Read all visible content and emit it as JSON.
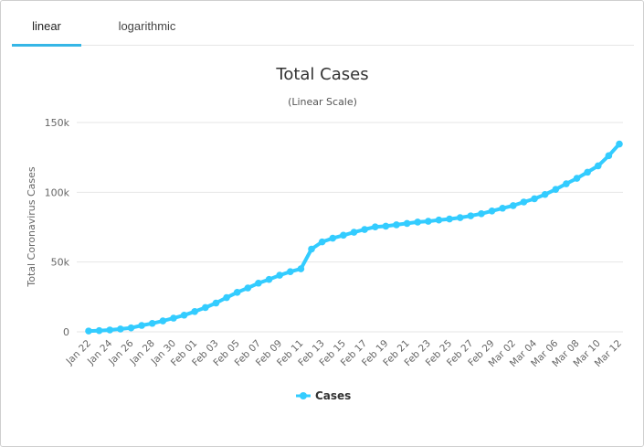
{
  "tabs": [
    {
      "label": "linear",
      "active": true
    },
    {
      "label": "logarithmic",
      "active": false
    }
  ],
  "colors": {
    "series": "#33ccff",
    "tab_underline": "#35b6e6",
    "grid": "#e6e6e6"
  },
  "chart_data": {
    "type": "line",
    "title": "Total Cases",
    "subtitle": "(Linear Scale)",
    "ylabel": "Total Coronavirus Cases",
    "xlabel": "",
    "ylim": [
      0,
      150000
    ],
    "yticks": [
      0,
      50000,
      100000,
      150000
    ],
    "ytick_labels": [
      "0",
      "50k",
      "100k",
      "150k"
    ],
    "legend": "bottom-center",
    "grid": true,
    "xtick_labels": [
      "Jan 22",
      "Jan 24",
      "Jan 26",
      "Jan 28",
      "Jan 30",
      "Feb 01",
      "Feb 03",
      "Feb 05",
      "Feb 07",
      "Feb 09",
      "Feb 11",
      "Feb 13",
      "Feb 15",
      "Feb 17",
      "Feb 19",
      "Feb 21",
      "Feb 23",
      "Feb 25",
      "Feb 27",
      "Feb 29",
      "Mar 02",
      "Mar 04",
      "Mar 06",
      "Mar 08",
      "Mar 10",
      "Mar 12"
    ],
    "series": [
      {
        "name": "Cases",
        "x": [
          "Jan 22",
          "Jan 23",
          "Jan 24",
          "Jan 25",
          "Jan 26",
          "Jan 27",
          "Jan 28",
          "Jan 29",
          "Jan 30",
          "Jan 31",
          "Feb 01",
          "Feb 02",
          "Feb 03",
          "Feb 04",
          "Feb 05",
          "Feb 06",
          "Feb 07",
          "Feb 08",
          "Feb 09",
          "Feb 10",
          "Feb 11",
          "Feb 12",
          "Feb 13",
          "Feb 14",
          "Feb 15",
          "Feb 16",
          "Feb 17",
          "Feb 18",
          "Feb 19",
          "Feb 20",
          "Feb 21",
          "Feb 22",
          "Feb 23",
          "Feb 24",
          "Feb 25",
          "Feb 26",
          "Feb 27",
          "Feb 28",
          "Feb 29",
          "Mar 01",
          "Mar 02",
          "Mar 03",
          "Mar 04",
          "Mar 05",
          "Mar 06",
          "Mar 07",
          "Mar 08",
          "Mar 09",
          "Mar 10",
          "Mar 11",
          "Mar 12"
        ],
        "values": [
          580,
          845,
          1317,
          2015,
          2800,
          4581,
          6058,
          7813,
          9823,
          11948,
          14551,
          17389,
          20628,
          24553,
          28276,
          31439,
          34876,
          37552,
          40553,
          43099,
          45134,
          59287,
          64438,
          67100,
          69197,
          71329,
          73332,
          75184,
          75700,
          76677,
          77673,
          78651,
          79205,
          80087,
          80828,
          81820,
          83112,
          84615,
          86604,
          88585,
          90443,
          93016,
          95314,
          98425,
          102050,
          106099,
          109991,
          114381,
          118948,
          126214,
          134576
        ]
      }
    ]
  }
}
